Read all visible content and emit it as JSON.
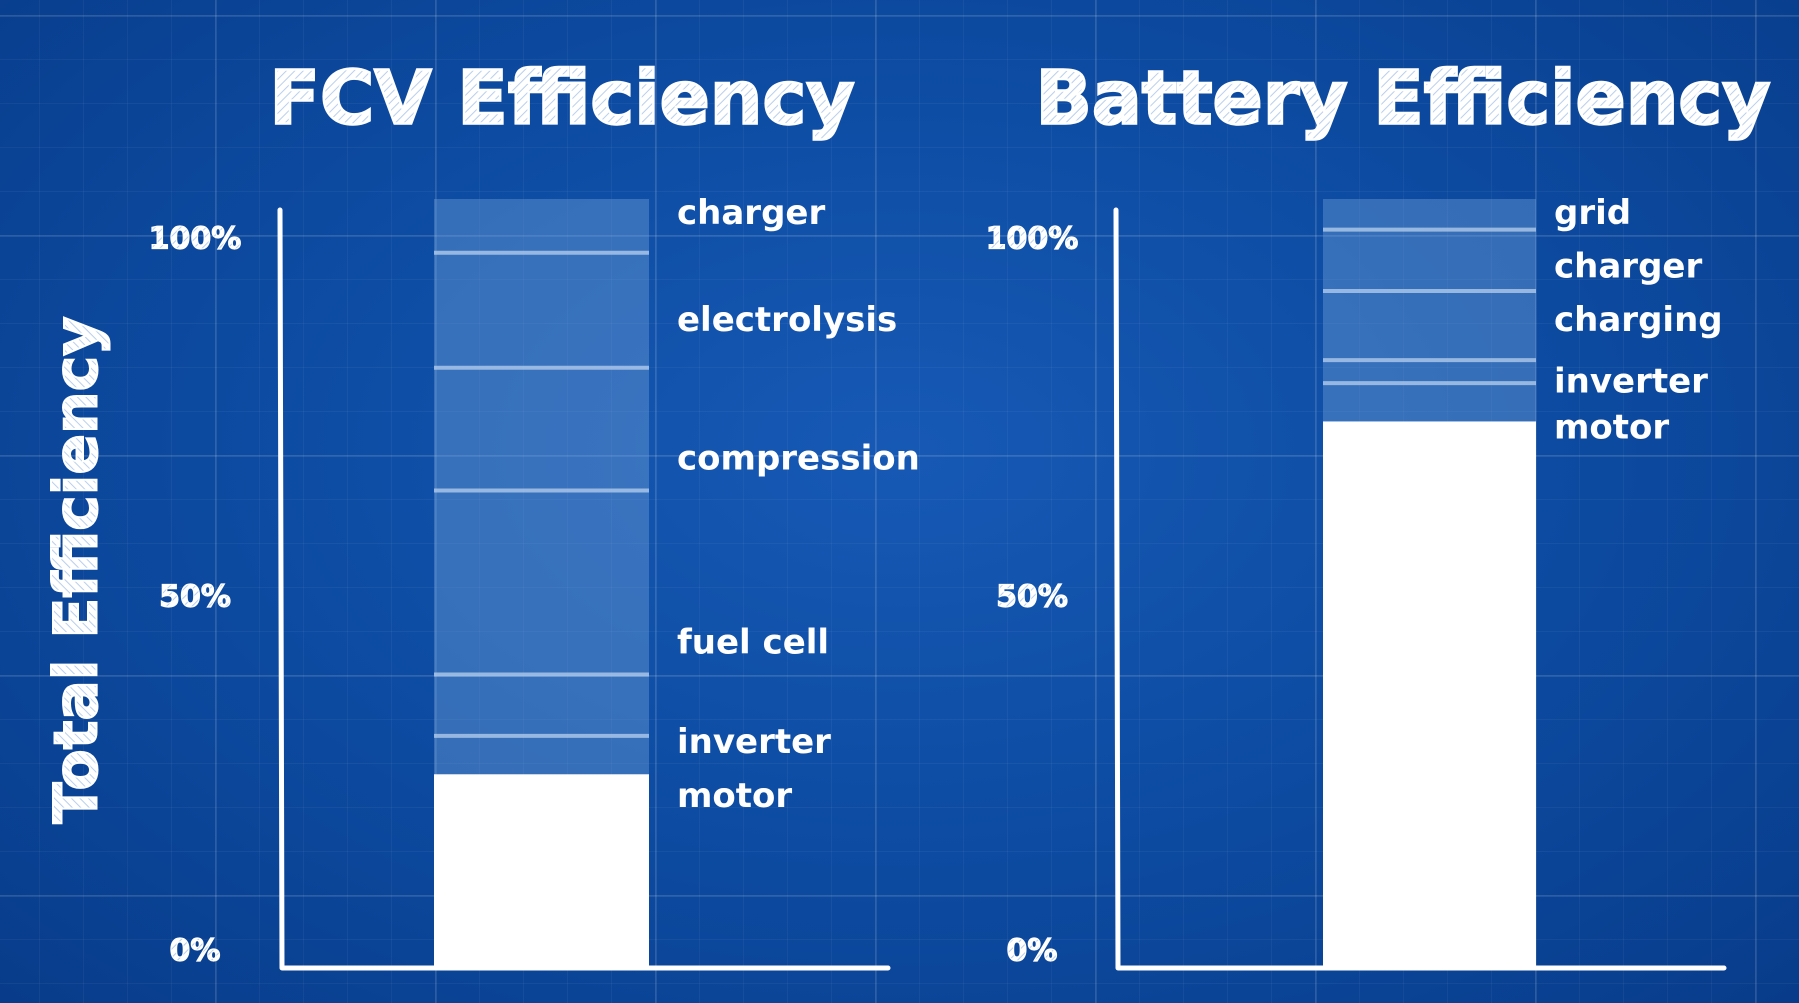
{
  "y_axis_title": "Total Efficiency",
  "colors": {
    "background": "#0b4aa0",
    "axis": "#ffffff",
    "remaining": "#ffffff",
    "loss_band": "#7aa8dc"
  },
  "chart_data": [
    {
      "type": "bar",
      "subtype": "stacked-loss",
      "title": "FCV Efficiency",
      "ylabel": "Total Efficiency",
      "ylim": [
        0,
        100
      ],
      "tick_labels": [
        "0%",
        "50%",
        "100%"
      ],
      "tick_values": [
        0,
        50,
        100
      ],
      "grid": false,
      "remaining_efficiency": 25,
      "loss_boundaries": [
        100,
        93,
        78,
        62,
        38,
        30,
        25
      ],
      "stage_labels": [
        "charger",
        "electrolysis",
        "compression",
        "fuel cell",
        "inverter",
        "motor"
      ],
      "stage_label_values": [
        98,
        84,
        66,
        42,
        29,
        22
      ]
    },
    {
      "type": "bar",
      "subtype": "stacked-loss",
      "title": "Battery Efficiency",
      "ylabel": "",
      "ylim": [
        0,
        100
      ],
      "tick_labels": [
        "0%",
        "50%",
        "100%"
      ],
      "tick_values": [
        0,
        50,
        100
      ],
      "grid": false,
      "remaining_efficiency": 71,
      "loss_boundaries": [
        100,
        96,
        88,
        79,
        76,
        71
      ],
      "stage_labels": [
        "grid",
        "charger",
        "charging",
        "inverter",
        "motor"
      ],
      "stage_label_values": [
        98,
        91,
        84,
        76,
        70
      ]
    }
  ]
}
